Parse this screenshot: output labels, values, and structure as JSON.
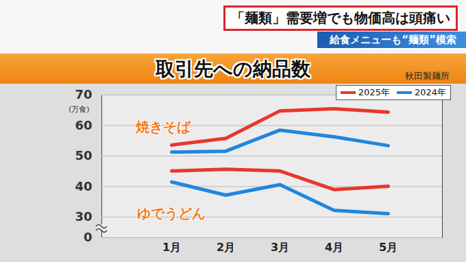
{
  "header": {
    "headline": "「麺類」需要増でも物価高は頭痛い",
    "subheadline": "給食メニューも“麺類”模索"
  },
  "chart_data": {
    "type": "line",
    "title": "取引先への納品数",
    "source": "秋田製麺所",
    "y_unit": "(万食)",
    "categories": [
      "1月",
      "2月",
      "3月",
      "4月",
      "5月"
    ],
    "series": [
      {
        "name": "2025年",
        "product": "焼きそば",
        "color": "#e8372c",
        "values": [
          53.6,
          55.8,
          64.8,
          65.5,
          64.4
        ]
      },
      {
        "name": "2024年",
        "product": "焼きそば",
        "color": "#1f86e0",
        "values": [
          51.3,
          51.6,
          58.5,
          56.3,
          53.4
        ]
      },
      {
        "name": "2025年",
        "product": "ゆでうどん",
        "color": "#e8372c",
        "values": [
          45.1,
          45.7,
          45.1,
          39.0,
          40.1
        ]
      },
      {
        "name": "2024年",
        "product": "ゆでうどん",
        "color": "#1f86e0",
        "values": [
          41.5,
          37.2,
          40.6,
          32.2,
          31.1
        ]
      }
    ],
    "ylim": [
      0,
      70
    ],
    "yticks": [
      0,
      30,
      40,
      50,
      60,
      70
    ],
    "grid": true,
    "legend": "top-right"
  }
}
